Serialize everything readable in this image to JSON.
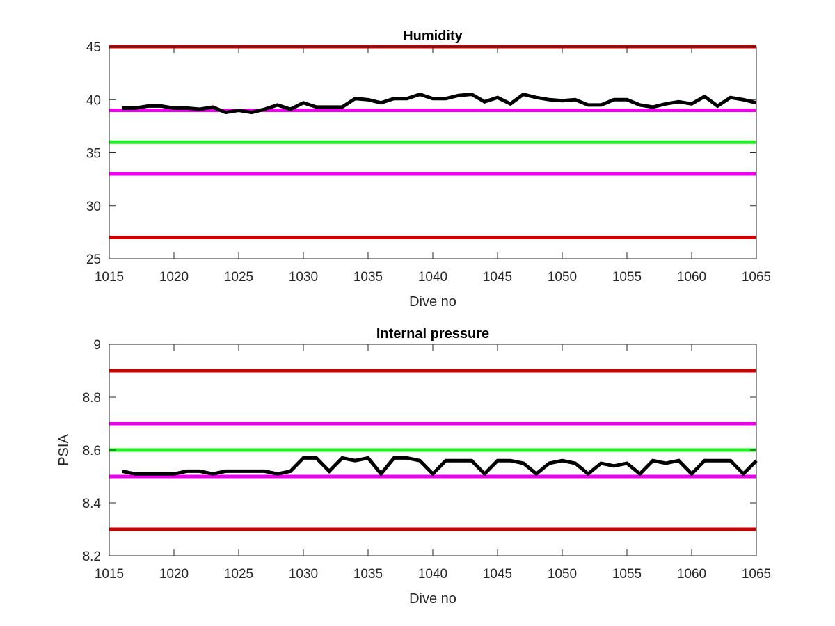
{
  "colors": {
    "limit_red": "#cc0000",
    "limit_magenta": "#ee00ee",
    "target_green": "#22ee22",
    "data_line": "#000000",
    "axis": "#262626"
  },
  "chart_data": [
    {
      "type": "line",
      "title": "Humidity",
      "xlabel": "Dive no",
      "ylabel": "",
      "xlim": [
        1015,
        1065
      ],
      "ylim": [
        25,
        45
      ],
      "xticks": [
        1015,
        1020,
        1025,
        1030,
        1035,
        1040,
        1045,
        1050,
        1055,
        1060,
        1065
      ],
      "yticks": [
        25,
        30,
        35,
        40,
        45
      ],
      "grid": false,
      "reference_lines": [
        {
          "y": 45,
          "color": "red"
        },
        {
          "y": 39,
          "color": "magenta"
        },
        {
          "y": 36,
          "color": "green"
        },
        {
          "y": 33,
          "color": "magenta"
        },
        {
          "y": 27,
          "color": "red"
        }
      ],
      "series": [
        {
          "x": [
            1016,
            1017,
            1018,
            1019,
            1020,
            1021,
            1022,
            1023,
            1024,
            1025,
            1026,
            1027,
            1028,
            1029,
            1030,
            1031,
            1032,
            1033,
            1034,
            1035,
            1036,
            1037,
            1038,
            1039,
            1040,
            1041,
            1042,
            1043,
            1044,
            1045,
            1046,
            1047,
            1048,
            1049,
            1050,
            1051,
            1052,
            1053,
            1054,
            1055,
            1056,
            1057,
            1058,
            1059,
            1060,
            1061,
            1062,
            1063,
            1064,
            1065
          ],
          "y": [
            39.2,
            39.2,
            39.4,
            39.4,
            39.2,
            39.2,
            39.1,
            39.3,
            38.8,
            39.0,
            38.8,
            39.1,
            39.5,
            39.1,
            39.7,
            39.3,
            39.3,
            39.3,
            40.1,
            40.0,
            39.7,
            40.1,
            40.1,
            40.5,
            40.1,
            40.1,
            40.4,
            40.5,
            39.8,
            40.2,
            39.6,
            40.5,
            40.2,
            40.0,
            39.9,
            40.0,
            39.5,
            39.5,
            40.0,
            40.0,
            39.5,
            39.3,
            39.6,
            39.8,
            39.6,
            40.3,
            39.4,
            40.2,
            40.0,
            39.7
          ]
        }
      ]
    },
    {
      "type": "line",
      "title": "Internal pressure",
      "xlabel": "Dive no",
      "ylabel": "PSIA",
      "xlim": [
        1015,
        1065
      ],
      "ylim": [
        8.2,
        9.0
      ],
      "xticks": [
        1015,
        1020,
        1025,
        1030,
        1035,
        1040,
        1045,
        1050,
        1055,
        1060,
        1065
      ],
      "yticks": [
        "8.2",
        "8.4",
        "8.6",
        "8.8",
        "9"
      ],
      "grid": false,
      "reference_lines": [
        {
          "y": 8.9,
          "color": "red"
        },
        {
          "y": 8.7,
          "color": "magenta"
        },
        {
          "y": 8.6,
          "color": "green"
        },
        {
          "y": 8.5,
          "color": "magenta"
        },
        {
          "y": 8.3,
          "color": "red"
        }
      ],
      "series": [
        {
          "x": [
            1016,
            1017,
            1018,
            1019,
            1020,
            1021,
            1022,
            1023,
            1024,
            1025,
            1026,
            1027,
            1028,
            1029,
            1030,
            1031,
            1032,
            1033,
            1034,
            1035,
            1036,
            1037,
            1038,
            1039,
            1040,
            1041,
            1042,
            1043,
            1044,
            1045,
            1046,
            1047,
            1048,
            1049,
            1050,
            1051,
            1052,
            1053,
            1054,
            1055,
            1056,
            1057,
            1058,
            1059,
            1060,
            1061,
            1062,
            1063,
            1064,
            1065
          ],
          "y": [
            8.52,
            8.51,
            8.51,
            8.51,
            8.51,
            8.52,
            8.52,
            8.51,
            8.52,
            8.52,
            8.52,
            8.52,
            8.51,
            8.52,
            8.57,
            8.57,
            8.52,
            8.57,
            8.56,
            8.57,
            8.51,
            8.57,
            8.57,
            8.56,
            8.51,
            8.56,
            8.56,
            8.56,
            8.51,
            8.56,
            8.56,
            8.55,
            8.51,
            8.55,
            8.56,
            8.55,
            8.51,
            8.55,
            8.54,
            8.55,
            8.51,
            8.56,
            8.55,
            8.56,
            8.51,
            8.56,
            8.56,
            8.56,
            8.51,
            8.56
          ]
        }
      ]
    }
  ]
}
